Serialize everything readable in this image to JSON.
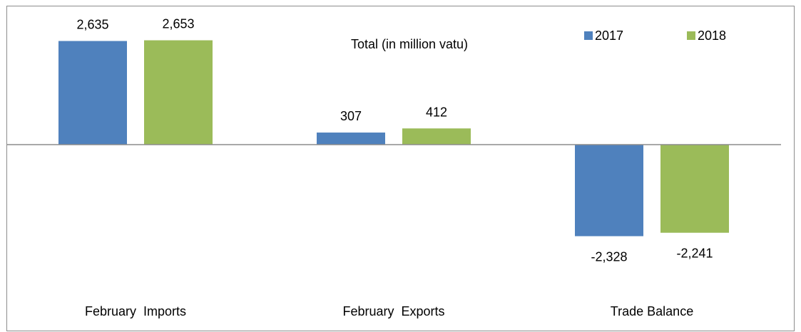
{
  "chart_data": {
    "type": "bar",
    "title": "Total (in million vatu)",
    "categories": [
      "February  Imports",
      "February  Exports",
      "Trade Balance"
    ],
    "series": [
      {
        "name": "2017",
        "color": "#4f81bd",
        "values": [
          2635,
          307,
          -2328
        ],
        "labels": [
          "2,635",
          "307",
          "-2,328"
        ]
      },
      {
        "name": "2018",
        "color": "#9bbb59",
        "values": [
          2653,
          412,
          -2241
        ],
        "labels": [
          "2,653",
          "412",
          "-2,241"
        ]
      }
    ],
    "ylim": [
      -3200,
      3300
    ],
    "grid": false,
    "legend": "top-right"
  }
}
